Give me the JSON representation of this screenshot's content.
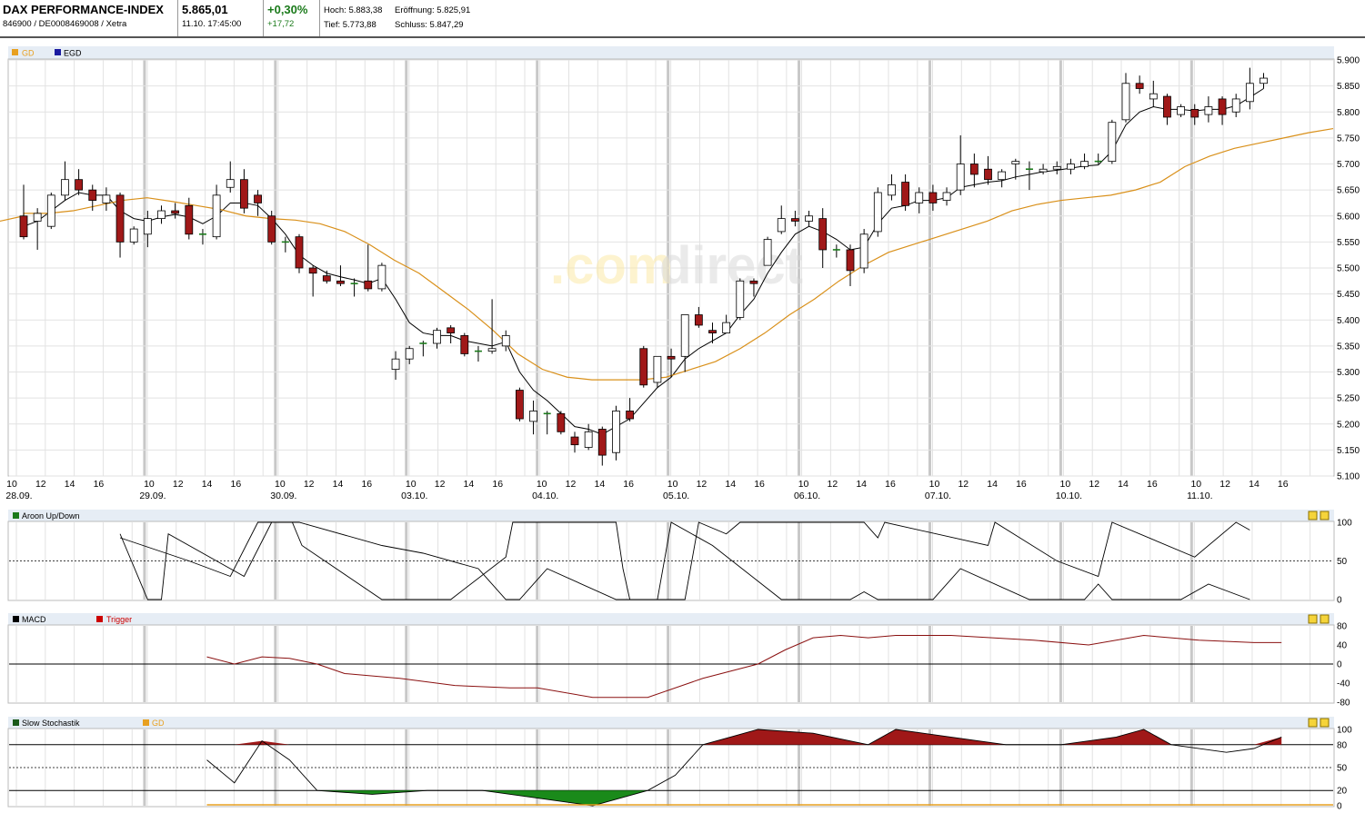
{
  "header": {
    "name": "DAX PERFORMANCE-INDEX",
    "ident": "846900 / DE0008469008 / Xetra",
    "price": "5.865,01",
    "datetime": "11.10. 17:45:00",
    "change_pct": "+0,30%",
    "change_abs": "+17,72",
    "high": "Hoch: 5.883,38",
    "open": "Eröffnung: 5.825,91",
    "low": "Tief: 5.773,88",
    "close": "Schluss: 5.847,29",
    "change_color": "#1a7a1a"
  },
  "watermark": {
    "part1": ".com",
    "part2": "direct"
  },
  "panels": {
    "main": {
      "legend": [
        "GD",
        "EGD"
      ],
      "legend_colors": [
        "#e8a020",
        "#1a1aa0"
      ]
    },
    "aroon": {
      "legend": "Aroon Up/Down",
      "legend_color": "#1a7a1a"
    },
    "macd": {
      "legend": [
        "MACD",
        "Trigger"
      ],
      "legend_colors": [
        "#000000",
        "#cc0000"
      ]
    },
    "stoch": {
      "legend": [
        "Slow Stochastik",
        "GD"
      ],
      "legend_colors": [
        "#1a5a1a",
        "#e8a020"
      ]
    }
  },
  "chart_data": [
    {
      "type": "candlestick",
      "ylim": [
        5100,
        5900
      ],
      "y_ticks": [
        "5.100",
        "5.150",
        "5.200",
        "5.250",
        "5.300",
        "5.350",
        "5.400",
        "5.450",
        "5.500",
        "5.550",
        "5.600",
        "5.650",
        "5.700",
        "5.750",
        "5.800",
        "5.850",
        "5.900"
      ],
      "hour_labels": [
        "10",
        "12",
        "14",
        "16"
      ],
      "day_labels": [
        "28.09.",
        "29.09.",
        "30.09.",
        "03.10.",
        "04.10.",
        "05.10.",
        "06.10.",
        "07.10.",
        "10.10.",
        "11.10."
      ],
      "candles": [
        [
          5600,
          5560,
          5660,
          5555
        ],
        [
          5590,
          5605,
          5615,
          5535
        ],
        [
          5580,
          5640,
          5645,
          5575
        ],
        [
          5640,
          5670,
          5705,
          5630
        ],
        [
          5670,
          5650,
          5690,
          5640
        ],
        [
          5650,
          5630,
          5660,
          5610
        ],
        [
          5625,
          5640,
          5655,
          5610
        ],
        [
          5640,
          5550,
          5645,
          5520
        ],
        [
          5550,
          5575,
          5580,
          5545
        ],
        [
          5565,
          5595,
          5610,
          5540
        ],
        [
          5595,
          5610,
          5620,
          5585
        ],
        [
          5610,
          5605,
          5625,
          5595
        ],
        [
          5620,
          5565,
          5635,
          5555
        ],
        [
          5565,
          5565,
          5575,
          5545
        ],
        [
          5560,
          5640,
          5660,
          5555
        ],
        [
          5655,
          5670,
          5705,
          5645
        ],
        [
          5670,
          5615,
          5690,
          5605
        ],
        [
          5640,
          5625,
          5650,
          5600
        ],
        [
          5600,
          5550,
          5610,
          5545
        ],
        [
          5550,
          5550,
          5560,
          5530
        ],
        [
          5560,
          5500,
          5565,
          5490
        ],
        [
          5500,
          5490,
          5505,
          5445
        ],
        [
          5485,
          5475,
          5495,
          5470
        ],
        [
          5475,
          5470,
          5505,
          5465
        ],
        [
          5470,
          5470,
          5480,
          5445
        ],
        [
          5475,
          5460,
          5545,
          5455
        ],
        [
          5460,
          5505,
          5510,
          5455
        ],
        [
          5305,
          5325,
          5340,
          5285
        ],
        [
          5325,
          5345,
          5350,
          5315
        ],
        [
          5355,
          5355,
          5360,
          5330
        ],
        [
          5355,
          5380,
          5385,
          5345
        ],
        [
          5385,
          5375,
          5390,
          5355
        ],
        [
          5370,
          5335,
          5375,
          5330
        ],
        [
          5340,
          5340,
          5350,
          5320
        ],
        [
          5340,
          5345,
          5440,
          5335
        ],
        [
          5350,
          5370,
          5380,
          5340
        ],
        [
          5265,
          5210,
          5270,
          5205
        ],
        [
          5205,
          5225,
          5245,
          5180
        ],
        [
          5220,
          5220,
          5225,
          5180
        ],
        [
          5220,
          5185,
          5225,
          5180
        ],
        [
          5175,
          5160,
          5185,
          5145
        ],
        [
          5155,
          5185,
          5200,
          5150
        ],
        [
          5190,
          5140,
          5195,
          5120
        ],
        [
          5145,
          5225,
          5235,
          5130
        ],
        [
          5225,
          5210,
          5250,
          5205
        ],
        [
          5345,
          5275,
          5350,
          5270
        ],
        [
          5280,
          5330,
          5330,
          5270
        ],
        [
          5330,
          5325,
          5345,
          5290
        ],
        [
          5330,
          5410,
          5410,
          5300
        ],
        [
          5410,
          5390,
          5425,
          5385
        ],
        [
          5380,
          5375,
          5395,
          5355
        ],
        [
          5375,
          5395,
          5410,
          5375
        ],
        [
          5405,
          5475,
          5480,
          5400
        ],
        [
          5475,
          5470,
          5480,
          5445
        ],
        [
          5505,
          5555,
          5560,
          5505
        ],
        [
          5570,
          5595,
          5620,
          5565
        ],
        [
          5595,
          5590,
          5610,
          5580
        ],
        [
          5590,
          5600,
          5610,
          5580
        ],
        [
          5595,
          5535,
          5615,
          5500
        ],
        [
          5535,
          5535,
          5545,
          5520
        ],
        [
          5535,
          5495,
          5545,
          5465
        ],
        [
          5500,
          5565,
          5575,
          5490
        ],
        [
          5570,
          5645,
          5655,
          5560
        ],
        [
          5640,
          5660,
          5680,
          5630
        ],
        [
          5665,
          5620,
          5680,
          5610
        ],
        [
          5625,
          5645,
          5655,
          5605
        ],
        [
          5645,
          5625,
          5660,
          5610
        ],
        [
          5630,
          5645,
          5655,
          5620
        ],
        [
          5650,
          5700,
          5755,
          5640
        ],
        [
          5700,
          5680,
          5720,
          5655
        ],
        [
          5690,
          5670,
          5715,
          5660
        ],
        [
          5670,
          5685,
          5690,
          5655
        ],
        [
          5700,
          5705,
          5710,
          5670
        ],
        [
          5690,
          5690,
          5705,
          5650
        ],
        [
          5685,
          5690,
          5700,
          5680
        ],
        [
          5690,
          5695,
          5705,
          5680
        ],
        [
          5690,
          5700,
          5710,
          5680
        ],
        [
          5695,
          5705,
          5720,
          5690
        ],
        [
          5705,
          5705,
          5720,
          5700
        ],
        [
          5705,
          5780,
          5785,
          5700
        ],
        [
          5785,
          5855,
          5875,
          5780
        ],
        [
          5855,
          5845,
          5870,
          5835
        ],
        [
          5825,
          5835,
          5860,
          5810
        ],
        [
          5830,
          5790,
          5835,
          5775
        ],
        [
          5795,
          5810,
          5815,
          5790
        ],
        [
          5805,
          5790,
          5815,
          5775
        ],
        [
          5795,
          5810,
          5830,
          5780
        ],
        [
          5825,
          5795,
          5830,
          5775
        ],
        [
          5800,
          5825,
          5835,
          5790
        ],
        [
          5820,
          5855,
          5885,
          5805
        ],
        [
          5855,
          5865,
          5875,
          5845
        ]
      ],
      "egd_line": [
        [
          5580,
          5590,
          5610,
          5630,
          5645,
          5640,
          5640,
          5610,
          5595,
          5590,
          5598,
          5603,
          5598,
          5585,
          5600,
          5625,
          5625,
          5620,
          5595,
          5565,
          5525,
          5505,
          5490,
          5483,
          5477,
          5470,
          5480,
          5440,
          5395,
          5375,
          5370,
          5370,
          5360,
          5355,
          5350,
          5358,
          5300,
          5265,
          5245,
          5220,
          5195,
          5190,
          5180,
          5195,
          5210,
          5240,
          5270,
          5290,
          5325,
          5345,
          5360,
          5375,
          5410,
          5440,
          5490,
          5530,
          5565,
          5580,
          5570,
          5555,
          5535,
          5540,
          5585,
          5615,
          5620,
          5630,
          5630,
          5635,
          5655,
          5660,
          5665,
          5668,
          5675,
          5680,
          5685,
          5688,
          5692,
          5696,
          5698,
          5725,
          5775,
          5800,
          5810,
          5805,
          5805,
          5802,
          5805,
          5805,
          5812,
          5828,
          5845
        ]
      ],
      "gd_line": [
        5605,
        5605,
        5610,
        5620,
        5630,
        5635,
        5628,
        5620,
        5612,
        5600,
        5595,
        5592,
        5585,
        5570,
        5545,
        5515,
        5490,
        5455,
        5420,
        5380,
        5335,
        5305,
        5290,
        5285,
        5285,
        5285,
        5290,
        5305,
        5320,
        5345,
        5375,
        5410,
        5440,
        5475,
        5505,
        5530,
        5545,
        5560,
        5575,
        5590,
        5610,
        5622,
        5630,
        5635,
        5640,
        5650,
        5665,
        5695,
        5715,
        5730,
        5740,
        5750,
        5760,
        5768
      ],
      "gd_x_start_index": 37
    },
    {
      "type": "line",
      "title": "Aroon Up/Down",
      "ylim": [
        0,
        100
      ],
      "y_ticks": [
        "0",
        "50",
        "100"
      ],
      "series": [
        {
          "values": [
            [
              7,
              85
            ],
            [
              9,
              0
            ],
            [
              10,
              0
            ],
            [
              10.5,
              85
            ],
            [
              16,
              30
            ],
            [
              18,
              100
            ],
            [
              19.5,
              100
            ],
            [
              20.2,
              70
            ],
            [
              26,
              0
            ],
            [
              31,
              0
            ],
            [
              35,
              55
            ],
            [
              35.5,
              100
            ],
            [
              43,
              100
            ],
            [
              43.5,
              40
            ],
            [
              44,
              0
            ],
            [
              48,
              0
            ],
            [
              49,
              100
            ],
            [
              51,
              85
            ],
            [
              52,
              100
            ],
            [
              61,
              100
            ],
            [
              62,
              80
            ],
            [
              62.5,
              100
            ],
            [
              70,
              70
            ],
            [
              70.5,
              100
            ],
            [
              75,
              50
            ],
            [
              78,
              30
            ],
            [
              79,
              100
            ],
            [
              85,
              55
            ],
            [
              88,
              100
            ],
            [
              89,
              90
            ]
          ]
        },
        {
          "values": [
            [
              7,
              80
            ],
            [
              12,
              50
            ],
            [
              15,
              30
            ],
            [
              17,
              100
            ],
            [
              20,
              100
            ],
            [
              26,
              70
            ],
            [
              29,
              60
            ],
            [
              33,
              40
            ],
            [
              35,
              0
            ],
            [
              36,
              0
            ],
            [
              38,
              40
            ],
            [
              43,
              0
            ],
            [
              46,
              0
            ],
            [
              47,
              100
            ],
            [
              50,
              70
            ],
            [
              55,
              0
            ],
            [
              60,
              0
            ],
            [
              61,
              10
            ],
            [
              62,
              0
            ],
            [
              66,
              0
            ],
            [
              68,
              40
            ],
            [
              73,
              0
            ],
            [
              77,
              0
            ],
            [
              78,
              20
            ],
            [
              79,
              0
            ],
            [
              84,
              0
            ],
            [
              86,
              20
            ],
            [
              89,
              0
            ]
          ]
        }
      ]
    },
    {
      "type": "line",
      "title": "MACD",
      "ylim": [
        -80,
        80
      ],
      "y_ticks": [
        "-80",
        "-40",
        "0",
        "40",
        "80"
      ],
      "series": [
        {
          "name": "Trigger",
          "values": [
            [
              12,
              15
            ],
            [
              14,
              0
            ],
            [
              16,
              15
            ],
            [
              18,
              12
            ],
            [
              20,
              0
            ],
            [
              22,
              -20
            ],
            [
              26,
              -30
            ],
            [
              30,
              -45
            ],
            [
              34,
              -50
            ],
            [
              36,
              -50
            ],
            [
              40,
              -70
            ],
            [
              44,
              -70
            ],
            [
              48,
              -30
            ],
            [
              52,
              0
            ],
            [
              54,
              30
            ],
            [
              56,
              55
            ],
            [
              58,
              60
            ],
            [
              60,
              55
            ],
            [
              62,
              60
            ],
            [
              66,
              60
            ],
            [
              72,
              50
            ],
            [
              76,
              40
            ],
            [
              80,
              60
            ],
            [
              84,
              50
            ],
            [
              88,
              45
            ],
            [
              90,
              45
            ]
          ]
        }
      ]
    },
    {
      "type": "area",
      "title": "Slow Stochastik",
      "ylim": [
        0,
        100
      ],
      "y_ticks": [
        "0",
        "20",
        "50",
        "80",
        "100"
      ],
      "series": [
        {
          "name": "Slow Stochastik",
          "values": [
            [
              12,
              60
            ],
            [
              14,
              30
            ],
            [
              16,
              85
            ],
            [
              18,
              60
            ],
            [
              20,
              20
            ],
            [
              24,
              15
            ],
            [
              28,
              20
            ],
            [
              32,
              20
            ],
            [
              36,
              10
            ],
            [
              40,
              0
            ],
            [
              44,
              20
            ],
            [
              46,
              40
            ],
            [
              48,
              80
            ],
            [
              50,
              90
            ],
            [
              52,
              100
            ],
            [
              56,
              95
            ],
            [
              60,
              80
            ],
            [
              62,
              100
            ],
            [
              66,
              90
            ],
            [
              70,
              80
            ],
            [
              74,
              80
            ],
            [
              78,
              90
            ],
            [
              80,
              100
            ],
            [
              82,
              80
            ],
            [
              86,
              70
            ],
            [
              88,
              75
            ],
            [
              90,
              90
            ]
          ]
        }
      ]
    }
  ]
}
